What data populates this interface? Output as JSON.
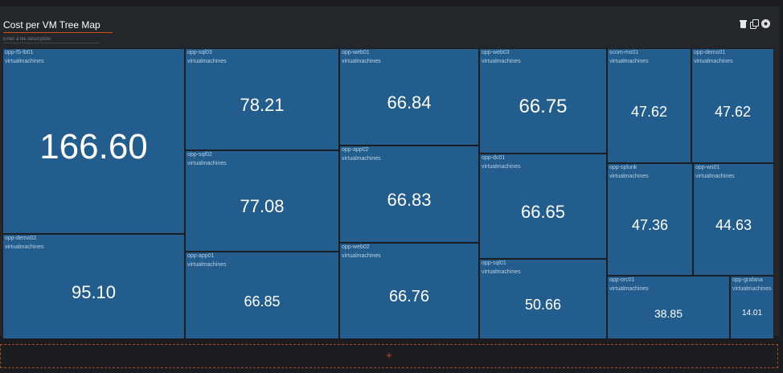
{
  "tile": {
    "title_value": "Cost per VM Tree Map",
    "description_placeholder": "Enter a tile description",
    "icons": [
      "trash-icon",
      "copy-icon",
      "gear-icon"
    ]
  },
  "add_zone": {
    "label": "+"
  },
  "colors": {
    "cell_fill": "#235d8e",
    "accent": "#c8501e"
  },
  "chart_data": {
    "type": "treemap",
    "category": "virtualmachines",
    "items": [
      {
        "name": "opp-f5-lb01",
        "category": "virtualmachines",
        "value": "166.60"
      },
      {
        "name": "opp-demo02",
        "category": "virtualmachines",
        "value": "95.10"
      },
      {
        "name": "opp-sql03",
        "category": "virtualmachines",
        "value": "78.21"
      },
      {
        "name": "opp-sql02",
        "category": "virtualmachines",
        "value": "77.08"
      },
      {
        "name": "opp-app01",
        "category": "virtualmachines",
        "value": "66.85"
      },
      {
        "name": "opp-web01",
        "category": "virtualmachines",
        "value": "66.84"
      },
      {
        "name": "opp-app02",
        "category": "virtualmachines",
        "value": "66.83"
      },
      {
        "name": "opp-web02",
        "category": "virtualmachines",
        "value": "66.76"
      },
      {
        "name": "opp-web03",
        "category": "virtualmachines",
        "value": "66.75"
      },
      {
        "name": "opp-dc01",
        "category": "virtualmachines",
        "value": "66.65"
      },
      {
        "name": "opp-sql01",
        "category": "virtualmachines",
        "value": "50.66"
      },
      {
        "name": "scom-ms01",
        "category": "virtualmachines",
        "value": "47.62"
      },
      {
        "name": "opp-demo01",
        "category": "virtualmachines",
        "value": "47.62"
      },
      {
        "name": "opp-splunk",
        "category": "virtualmachines",
        "value": "47.36"
      },
      {
        "name": "opp-ws01",
        "category": "virtualmachines",
        "value": "44.63"
      },
      {
        "name": "opp-orc01",
        "category": "virtualmachines",
        "value": "38.85"
      },
      {
        "name": "opp-grafana",
        "category": "virtualmachines",
        "value": "14.01"
      }
    ]
  }
}
